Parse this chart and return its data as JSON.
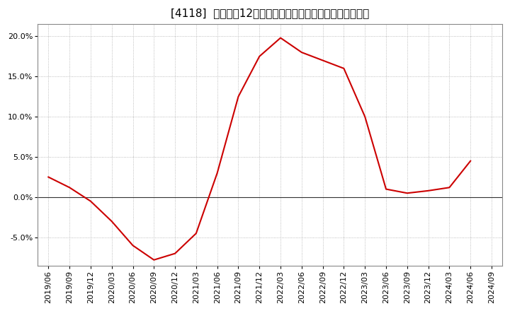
{
  "title": "[4118]  売上高の12か月移動合計の対前年同期増減率の推移",
  "dates": [
    "2019/06",
    "2019/09",
    "2019/12",
    "2020/03",
    "2020/06",
    "2020/09",
    "2020/12",
    "2021/03",
    "2021/06",
    "2021/09",
    "2021/12",
    "2022/03",
    "2022/06",
    "2022/09",
    "2022/12",
    "2023/03",
    "2023/06",
    "2023/09",
    "2023/12",
    "2024/03",
    "2024/06",
    "2024/09"
  ],
  "values": [
    2.5,
    1.2,
    -0.5,
    -3.0,
    -6.0,
    -7.8,
    -7.0,
    -4.5,
    3.0,
    12.5,
    17.5,
    19.8,
    18.0,
    17.0,
    16.0,
    10.0,
    1.0,
    0.5,
    0.8,
    1.2,
    4.5,
    null
  ],
  "line_color": "#cc0000",
  "line_width": 1.5,
  "ylim": [
    -8.5,
    21.5
  ],
  "yticks": [
    -5.0,
    0.0,
    5.0,
    10.0,
    15.0,
    20.0
  ],
  "background_color": "#ffffff",
  "grid_color": "#aaaaaa",
  "grid_linestyle": ":",
  "title_fontsize": 11,
  "tick_fontsize": 8,
  "zero_line_color": "#333333",
  "spine_color": "#888888"
}
